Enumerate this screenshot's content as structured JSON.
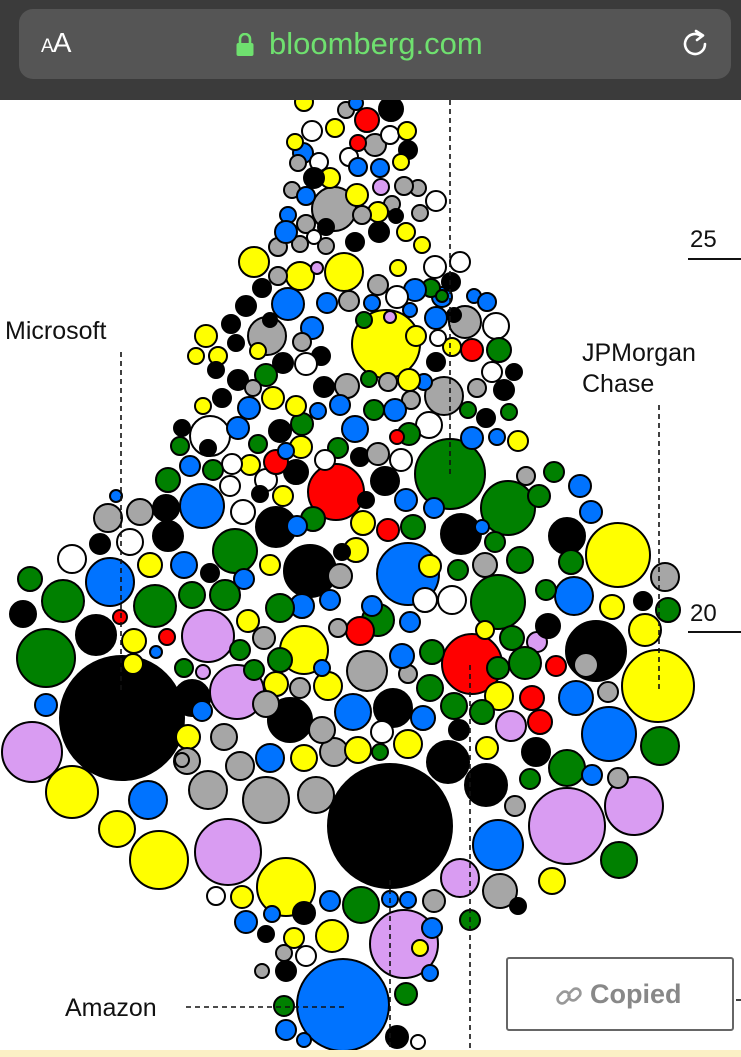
{
  "browser": {
    "text_size_small": "A",
    "text_size_large": "A",
    "domain": "bloomberg.com",
    "accent_color": "#6fe06f"
  },
  "chart": {
    "labels": [
      {
        "text": "Microsoft"
      },
      {
        "text": "JPMorgan\nChase"
      },
      {
        "text": "Amazon"
      }
    ],
    "axis_ticks": [
      "25",
      "20"
    ]
  },
  "toast": {
    "label": "Copied",
    "icon": "link-icon"
  },
  "colors": {
    "black": "#000000",
    "yellow": "#ffff00",
    "green": "#008000",
    "blue": "#0073ff",
    "gray": "#a6a6a6",
    "violet": "#d99cf2",
    "red": "#ff0000",
    "white": "#ffffff"
  }
}
